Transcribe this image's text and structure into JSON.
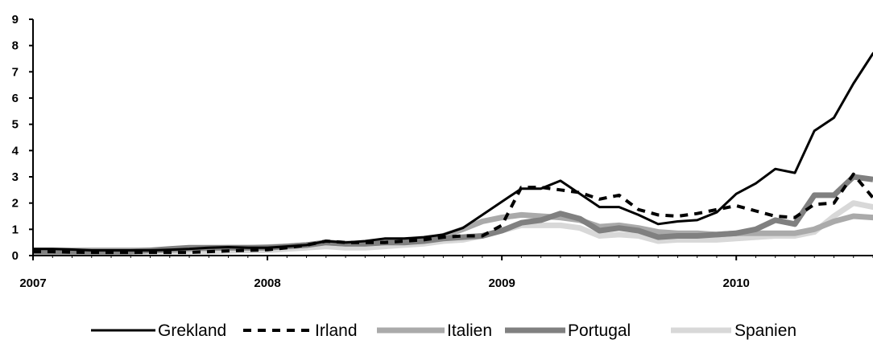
{
  "chart_data": {
    "type": "line",
    "title": "",
    "xlabel": "",
    "ylabel": "",
    "ylim": [
      0,
      9
    ],
    "y_ticks": [
      "0",
      "1",
      "2",
      "3",
      "4",
      "5",
      "6",
      "7",
      "8",
      "9"
    ],
    "x_ticks": [
      {
        "label": "2007",
        "month": 0
      },
      {
        "label": "2008",
        "month": 12
      },
      {
        "label": "2009",
        "month": 24
      },
      {
        "label": "2010",
        "month": 36
      }
    ],
    "x_range_months": [
      0,
      43
    ],
    "grid": false,
    "legend_position": "bottom",
    "series": [
      {
        "name": "Grekland",
        "color": "#000000",
        "dash": "solid",
        "width": 3,
        "values": [
          0.25,
          0.25,
          0.23,
          0.2,
          0.2,
          0.2,
          0.2,
          0.22,
          0.25,
          0.3,
          0.32,
          0.3,
          0.3,
          0.35,
          0.4,
          0.55,
          0.5,
          0.55,
          0.65,
          0.65,
          0.7,
          0.8,
          1.05,
          1.55,
          2.05,
          2.55,
          2.55,
          2.85,
          2.35,
          1.85,
          1.85,
          1.55,
          1.2,
          1.3,
          1.35,
          1.65,
          2.35,
          2.75,
          3.3,
          3.15,
          4.75,
          5.25,
          6.55,
          7.7,
          8.35
        ]
      },
      {
        "name": "Irland",
        "color": "#000000",
        "dash": "dashed",
        "width": 4,
        "values": [
          0.15,
          0.15,
          0.13,
          0.12,
          0.12,
          0.12,
          0.12,
          0.12,
          0.12,
          0.15,
          0.18,
          0.2,
          0.22,
          0.3,
          0.4,
          0.55,
          0.5,
          0.5,
          0.5,
          0.55,
          0.6,
          0.7,
          0.75,
          0.75,
          1.15,
          2.6,
          2.6,
          2.5,
          2.4,
          2.15,
          2.3,
          1.75,
          1.55,
          1.5,
          1.6,
          1.75,
          1.9,
          1.7,
          1.5,
          1.45,
          1.95,
          2.0,
          3.1,
          2.2
        ]
      },
      {
        "name": "Italien",
        "color": "#aaaaaa",
        "dash": "solid",
        "width": 7,
        "values": [
          0.2,
          0.2,
          0.2,
          0.2,
          0.2,
          0.2,
          0.2,
          0.2,
          0.25,
          0.28,
          0.3,
          0.3,
          0.32,
          0.35,
          0.4,
          0.5,
          0.45,
          0.45,
          0.5,
          0.55,
          0.6,
          0.75,
          1.0,
          1.3,
          1.45,
          1.55,
          1.5,
          1.45,
          1.35,
          1.1,
          1.15,
          1.05,
          0.9,
          0.85,
          0.85,
          0.8,
          0.85,
          0.85,
          0.85,
          0.85,
          1.0,
          1.3,
          1.5,
          1.45,
          1.45
        ]
      },
      {
        "name": "Portugal",
        "color": "#808080",
        "dash": "solid",
        "width": 7,
        "values": [
          0.15,
          0.15,
          0.15,
          0.15,
          0.15,
          0.15,
          0.2,
          0.25,
          0.3,
          0.3,
          0.3,
          0.3,
          0.3,
          0.35,
          0.4,
          0.5,
          0.45,
          0.45,
          0.5,
          0.5,
          0.55,
          0.65,
          0.7,
          0.75,
          0.95,
          1.25,
          1.35,
          1.6,
          1.4,
          0.95,
          1.05,
          0.95,
          0.7,
          0.75,
          0.75,
          0.8,
          0.85,
          1.0,
          1.35,
          1.2,
          2.3,
          2.3,
          3.0,
          2.9
        ]
      },
      {
        "name": "Spanien",
        "color": "#d8d8d8",
        "dash": "solid",
        "width": 7,
        "values": [
          0.15,
          0.15,
          0.15,
          0.15,
          0.15,
          0.15,
          0.15,
          0.15,
          0.15,
          0.15,
          0.18,
          0.2,
          0.2,
          0.25,
          0.3,
          0.35,
          0.3,
          0.3,
          0.35,
          0.4,
          0.45,
          0.55,
          0.6,
          0.75,
          0.95,
          1.15,
          1.15,
          1.15,
          1.05,
          0.75,
          0.8,
          0.75,
          0.55,
          0.6,
          0.6,
          0.6,
          0.65,
          0.7,
          0.75,
          0.75,
          0.9,
          1.5,
          2.0,
          1.85,
          1.75
        ]
      }
    ]
  }
}
